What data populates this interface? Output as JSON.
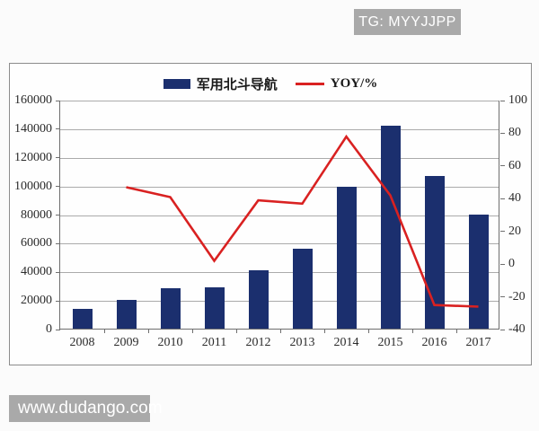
{
  "page": {
    "watermark_top": "TG: MYYJJPP",
    "watermark_bottom": "www.dudango.com",
    "watermark_bg": "#a9a9a9",
    "watermark_text_color": "#ffffff"
  },
  "chart_data": {
    "type": "bar",
    "combo": "bar+line",
    "title": "",
    "categories": [
      "2008",
      "2009",
      "2010",
      "2011",
      "2012",
      "2013",
      "2014",
      "2015",
      "2016",
      "2017"
    ],
    "series": [
      {
        "name": "军用北斗导航",
        "type": "bar",
        "axis": "left",
        "color": "#1b2f6e",
        "values": [
          13600,
          20000,
          28400,
          29000,
          40500,
          55800,
          99000,
          141500,
          106800,
          79600
        ]
      },
      {
        "name": "YOY/%",
        "type": "line",
        "axis": "right",
        "color": "#d92121",
        "values": [
          null,
          47,
          41,
          2,
          39,
          37,
          78,
          42,
          -25,
          -26
        ]
      }
    ],
    "left_axis": {
      "min": 0,
      "max": 160000,
      "step": 20000,
      "ticks": [
        "0",
        "20000",
        "40000",
        "60000",
        "80000",
        "100000",
        "120000",
        "140000",
        "160000"
      ]
    },
    "right_axis": {
      "min": -40,
      "max": 100,
      "step": 20,
      "ticks": [
        "-40",
        "-20",
        "0",
        "20",
        "40",
        "60",
        "80",
        "100"
      ]
    },
    "legend_position": "top",
    "grid": true
  }
}
